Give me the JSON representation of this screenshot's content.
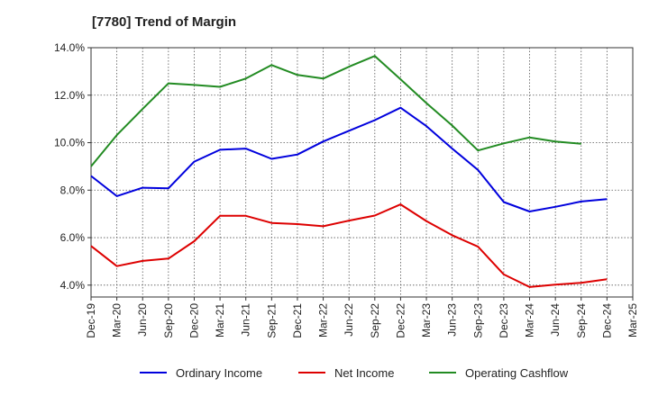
{
  "chart_data": {
    "type": "line",
    "title": "[7780]  Trend of Margin",
    "xlabel": "",
    "ylabel": "",
    "x": [
      "Dec-19",
      "Mar-20",
      "Jun-20",
      "Sep-20",
      "Dec-20",
      "Mar-21",
      "Jun-21",
      "Sep-21",
      "Dec-21",
      "Mar-22",
      "Jun-22",
      "Sep-22",
      "Dec-22",
      "Mar-23",
      "Jun-23",
      "Sep-23",
      "Dec-23",
      "Mar-24",
      "Jun-24",
      "Sep-24",
      "Dec-24",
      "Mar-25"
    ],
    "ylim": [
      3.5,
      14.0
    ],
    "yticks": [
      4.0,
      6.0,
      8.0,
      10.0,
      12.0,
      14.0
    ],
    "ytick_labels": [
      "4.0%",
      "6.0%",
      "8.0%",
      "10.0%",
      "12.0%",
      "14.0%"
    ],
    "grid": true,
    "legend_position": "bottom",
    "series": [
      {
        "name": "Ordinary Income",
        "color": "#0000dd",
        "values": [
          8.6,
          7.75,
          8.1,
          8.08,
          9.2,
          9.7,
          9.75,
          9.32,
          9.5,
          10.05,
          10.5,
          10.95,
          11.47,
          10.7,
          9.75,
          8.85,
          7.5,
          7.1,
          7.3,
          7.52,
          7.62,
          null
        ]
      },
      {
        "name": "Net Income",
        "color": "#dd0000",
        "values": [
          5.65,
          4.8,
          5.02,
          5.12,
          5.85,
          6.92,
          6.92,
          6.62,
          6.57,
          6.48,
          6.72,
          6.93,
          7.4,
          6.7,
          6.1,
          5.62,
          4.45,
          3.92,
          4.02,
          4.1,
          4.25,
          null
        ]
      },
      {
        "name": "Operating Cashflow",
        "color": "#228b22",
        "values": [
          9.0,
          10.32,
          11.42,
          12.5,
          12.43,
          12.35,
          12.7,
          13.27,
          12.85,
          12.7,
          13.2,
          13.65,
          12.67,
          11.67,
          10.72,
          9.67,
          9.97,
          10.22,
          10.05,
          9.95,
          null,
          null
        ]
      }
    ]
  }
}
